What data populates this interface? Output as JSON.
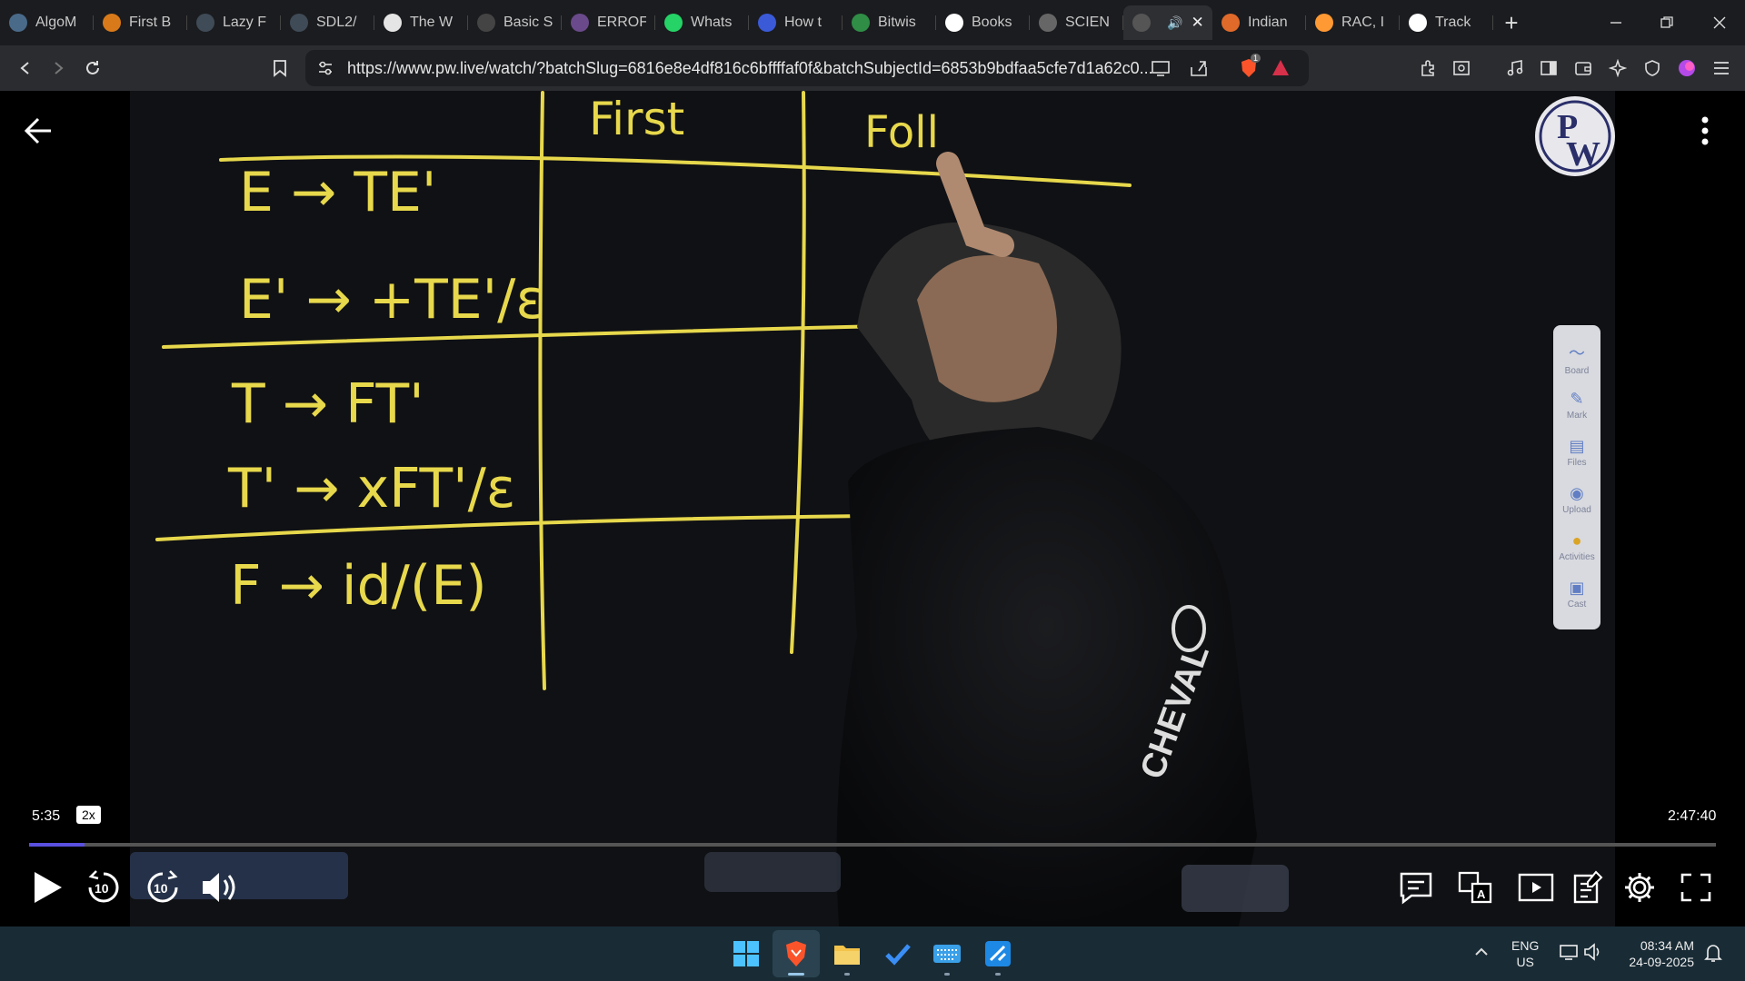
{
  "browser": {
    "tabs": [
      {
        "label": "AlgoM",
        "icon": "algo-icon",
        "color": "#4a6a8a"
      },
      {
        "label": "First B",
        "icon": "bolt-icon",
        "color": "#d97a1a"
      },
      {
        "label": "Lazy F",
        "icon": "spiral-icon",
        "color": "#3f4b57"
      },
      {
        "label": "SDL2/",
        "icon": "spiral-icon",
        "color": "#3f4b57"
      },
      {
        "label": "The W",
        "icon": "w-icon",
        "color": "#e5e5e5"
      },
      {
        "label": "Basic S",
        "icon": "m-icon",
        "color": "#444"
      },
      {
        "label": "ERROF",
        "icon": "error-icon",
        "color": "#6a4a8a"
      },
      {
        "label": "Whats",
        "icon": "whatsapp-icon",
        "color": "#25d366"
      },
      {
        "label": "How t",
        "icon": "gem-icon",
        "color": "#3a5ad8"
      },
      {
        "label": "Bitwis",
        "icon": "gfg-icon",
        "color": "#2f8d46"
      },
      {
        "label": "Books",
        "icon": "google-icon",
        "color": "#ffffff"
      },
      {
        "label": "SCIEN",
        "icon": "globe-icon",
        "color": "#666"
      },
      {
        "label": "",
        "icon": "globe-icon",
        "color": "#555",
        "active": true
      },
      {
        "label": "Indian",
        "icon": "india-icon",
        "color": "#e06a2a"
      },
      {
        "label": "RAC, I",
        "icon": "flag-icon",
        "color": "#ff9933"
      },
      {
        "label": "Track",
        "icon": "amazon-icon",
        "color": "#ffffff"
      }
    ],
    "url": "https://www.pw.live/watch/?batchSlug=6816e8e4df816c6bffffaf0f&batchSubjectId=6853b9bdfaa5cfe7d1a62c0...",
    "brave_badge": "1"
  },
  "board": {
    "headers": [
      "First",
      "Foll"
    ],
    "rules": [
      "E → TE'",
      "E' → +TE'/ε",
      "T → FT'",
      "T' → xFT'/ε",
      "F → id/(E)"
    ],
    "shirt_text": "CHEVAL"
  },
  "side_toolbar": [
    {
      "label": "Board",
      "icon": "board-icon"
    },
    {
      "label": "Mark",
      "icon": "pen-icon"
    },
    {
      "label": "Files",
      "icon": "folder-icon"
    },
    {
      "label": "Upload",
      "icon": "camera-icon"
    },
    {
      "label": "Activities",
      "icon": "bulb-icon"
    },
    {
      "label": "Cast",
      "icon": "cast-icon"
    }
  ],
  "player": {
    "current_time": "5:35",
    "speed": "2x",
    "duration": "2:47:40",
    "progress": 0.033,
    "rewind_seconds": "10",
    "forward_seconds": "10"
  },
  "taskbar": {
    "lang_top": "ENG",
    "lang_bottom": "US",
    "time": "08:34 AM",
    "date": "24-09-2025"
  }
}
